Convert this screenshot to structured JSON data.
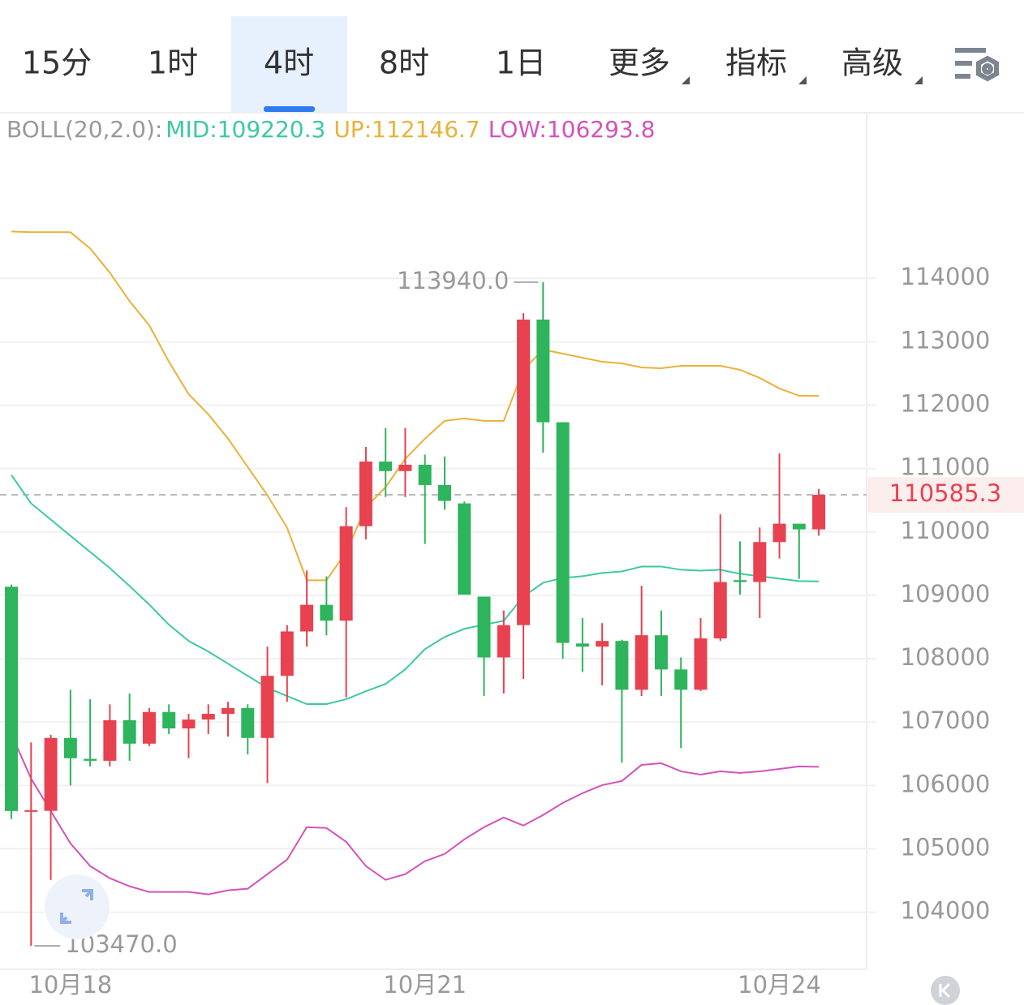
{
  "tabs": {
    "items": [
      "15分",
      "1时",
      "4时",
      "8时",
      "1日",
      "更多",
      "指标",
      "高级"
    ],
    "active": 2
  },
  "chart_data": {
    "type": "candlestick",
    "indicator": {
      "name": "BOLL(20,2.0):",
      "mid": "MID:109220.3",
      "up": "UP:112146.7",
      "low": "LOW:106293.8"
    },
    "categories": [
      null,
      null,
      null,
      "10月18",
      null,
      null,
      null,
      null,
      null,
      null,
      null,
      null,
      null,
      null,
      null,
      null,
      null,
      null,
      null,
      null,
      null,
      "10月21",
      null,
      null,
      null,
      null,
      null,
      null,
      null,
      null,
      null,
      null,
      null,
      null,
      null,
      null,
      null,
      null,
      null,
      "10月24",
      null,
      null
    ],
    "open": [
      109135,
      105590,
      105600,
      106750,
      106420,
      106390,
      107030,
      106660,
      107160,
      106900,
      107040,
      107130,
      107220,
      106750,
      107730,
      108430,
      108850,
      108600,
      110090,
      111110,
      110960,
      111060,
      110740,
      110450,
      108980,
      108020,
      108530,
      113350,
      111730,
      108240,
      108190,
      108280,
      107510,
      108370,
      107830,
      107510,
      108320,
      109240,
      109210,
      109840,
      110130,
      110040
    ],
    "high": [
      109170,
      106680,
      106800,
      107510,
      107360,
      107280,
      107450,
      107220,
      107280,
      107130,
      107280,
      107320,
      107280,
      108190,
      108530,
      109390,
      109300,
      110390,
      111340,
      111640,
      111640,
      111220,
      111190,
      110480,
      108980,
      108760,
      113450,
      113940,
      111730,
      108640,
      108560,
      108300,
      109150,
      108760,
      108020,
      108640,
      110280,
      109850,
      110070,
      111240,
      110130,
      110680
    ],
    "low": [
      105470,
      103470,
      104510,
      106000,
      106300,
      106300,
      106390,
      106620,
      106810,
      106430,
      106810,
      106770,
      106490,
      106040,
      107320,
      108190,
      108370,
      107390,
      109880,
      110550,
      110550,
      109810,
      110350,
      109010,
      107410,
      107450,
      107680,
      111250,
      108000,
      107790,
      107580,
      106360,
      107410,
      107410,
      106590,
      107490,
      108280,
      109010,
      108640,
      109580,
      109260,
      109940
    ],
    "close": [
      105597,
      105610,
      106750,
      106430,
      106390,
      107030,
      106660,
      107160,
      106900,
      107040,
      107130,
      107220,
      106750,
      107730,
      108430,
      108850,
      108600,
      110090,
      111110,
      110960,
      111060,
      110740,
      110490,
      109010,
      108020,
      108530,
      113350,
      111730,
      108250,
      108190,
      108280,
      107510,
      108370,
      107830,
      107510,
      108320,
      109210,
      109210,
      109840,
      110130,
      110040,
      110585.3
    ],
    "up_color": "#e8414f",
    "down_color": "#2eb45c",
    "lines": [
      {
        "name": "UP",
        "color": "#e9b23a",
        "values": [
          114740,
          114728,
          114728,
          114728,
          114472,
          114089,
          113642,
          113259,
          112685,
          112174,
          111855,
          111472,
          111025,
          110578,
          110067,
          109237,
          109237,
          109684,
          110386,
          110706,
          111153,
          111472,
          111752,
          111790,
          111752,
          111752,
          112557,
          112876,
          112812,
          112748,
          112685,
          112659,
          112595,
          112582,
          112621,
          112621,
          112621,
          112557,
          112429,
          112263,
          112148,
          112146.7
        ]
      },
      {
        "name": "MID",
        "color": "#3cc9a3",
        "values": [
          110897,
          110450,
          110195,
          109939,
          109684,
          109429,
          109147,
          108854,
          108536,
          108280,
          108113,
          107922,
          107730,
          107539,
          107411,
          107284,
          107284,
          107360,
          107487,
          107602,
          107832,
          108151,
          108343,
          108471,
          108536,
          108598,
          108981,
          109198,
          109275,
          109301,
          109352,
          109377,
          109454,
          109454,
          109403,
          109390,
          109403,
          109339,
          109301,
          109263,
          109224,
          109220.3
        ]
      },
      {
        "name": "LOW",
        "color": "#d352bb",
        "values": [
          106810,
          106108,
          105597,
          105086,
          104729,
          104537,
          104410,
          104320,
          104320,
          104320,
          104282,
          104346,
          104371,
          104601,
          104831,
          105342,
          105329,
          105112,
          104729,
          104512,
          104601,
          104806,
          104920,
          105150,
          105342,
          105495,
          105368,
          105534,
          105725,
          105878,
          106006,
          106070,
          106325,
          106351,
          106223,
          106172,
          106223,
          106198,
          106223,
          106261,
          106300,
          106293.8
        ]
      }
    ],
    "max_label": {
      "value": 113940,
      "label": "113940.0",
      "index": 27
    },
    "min_label": {
      "value": 103470,
      "label": "103470.0",
      "index": 1
    },
    "current_price": 110585.3,
    "ylim": [
      103100,
      116600
    ],
    "yticks": [
      104000,
      105000,
      106000,
      107000,
      108000,
      109000,
      110000,
      111000,
      112000,
      113000,
      114000
    ],
    "grid": true
  }
}
